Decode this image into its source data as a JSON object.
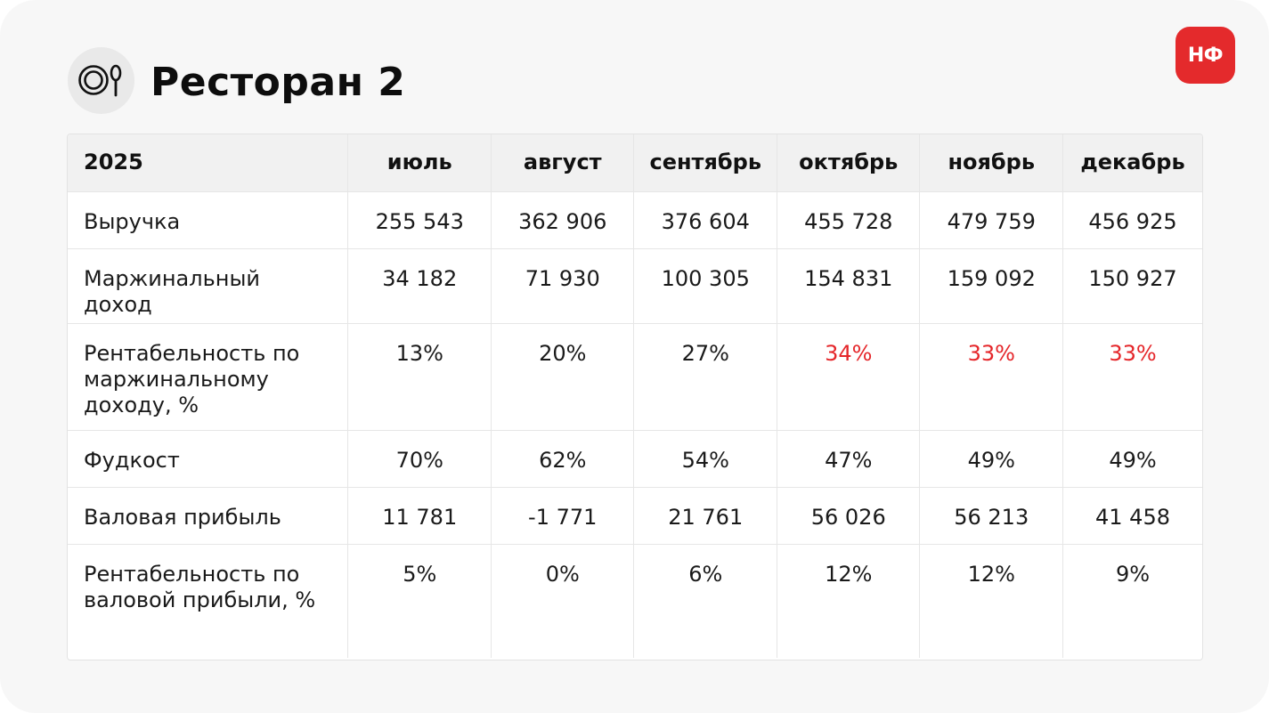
{
  "header": {
    "title": "Ресторан 2",
    "icon": "plate-spoon-icon",
    "logo_text": "НФ",
    "logo_color": "#e42a2c"
  },
  "table": {
    "year": "2025",
    "months": [
      "июль",
      "август",
      "сентябрь",
      "октябрь",
      "ноябрь",
      "декабрь"
    ],
    "highlight_color": "#e5262a",
    "rows": [
      {
        "label": "Выручка",
        "values": [
          "255 543",
          "362 906",
          "376 604",
          "455 728",
          "479 759",
          "456 925"
        ],
        "highlighted": [
          false,
          false,
          false,
          false,
          false,
          false
        ]
      },
      {
        "label": "Маржинальный доход",
        "values": [
          "34 182",
          "71 930",
          "100 305",
          "154 831",
          "159 092",
          "150 927"
        ],
        "highlighted": [
          false,
          false,
          false,
          false,
          false,
          false
        ]
      },
      {
        "label": "Рентабельность по маржинальному доходу, %",
        "values": [
          "13%",
          "20%",
          "27%",
          "34%",
          "33%",
          "33%"
        ],
        "highlighted": [
          false,
          false,
          false,
          true,
          true,
          true
        ]
      },
      {
        "label": "Фудкост",
        "values": [
          "70%",
          "62%",
          "54%",
          "47%",
          "49%",
          "49%"
        ],
        "highlighted": [
          false,
          false,
          false,
          false,
          false,
          false
        ]
      },
      {
        "label": "Валовая прибыль",
        "values": [
          "11 781",
          "-1 771",
          "21 761",
          "56 026",
          "56 213",
          "41 458"
        ],
        "highlighted": [
          false,
          false,
          false,
          false,
          false,
          false
        ]
      },
      {
        "label": "Рентабельность по валовой прибыли, %",
        "values": [
          "5%",
          "0%",
          "6%",
          "12%",
          "12%",
          "9%"
        ],
        "highlighted": [
          false,
          false,
          false,
          false,
          false,
          false
        ]
      }
    ]
  }
}
